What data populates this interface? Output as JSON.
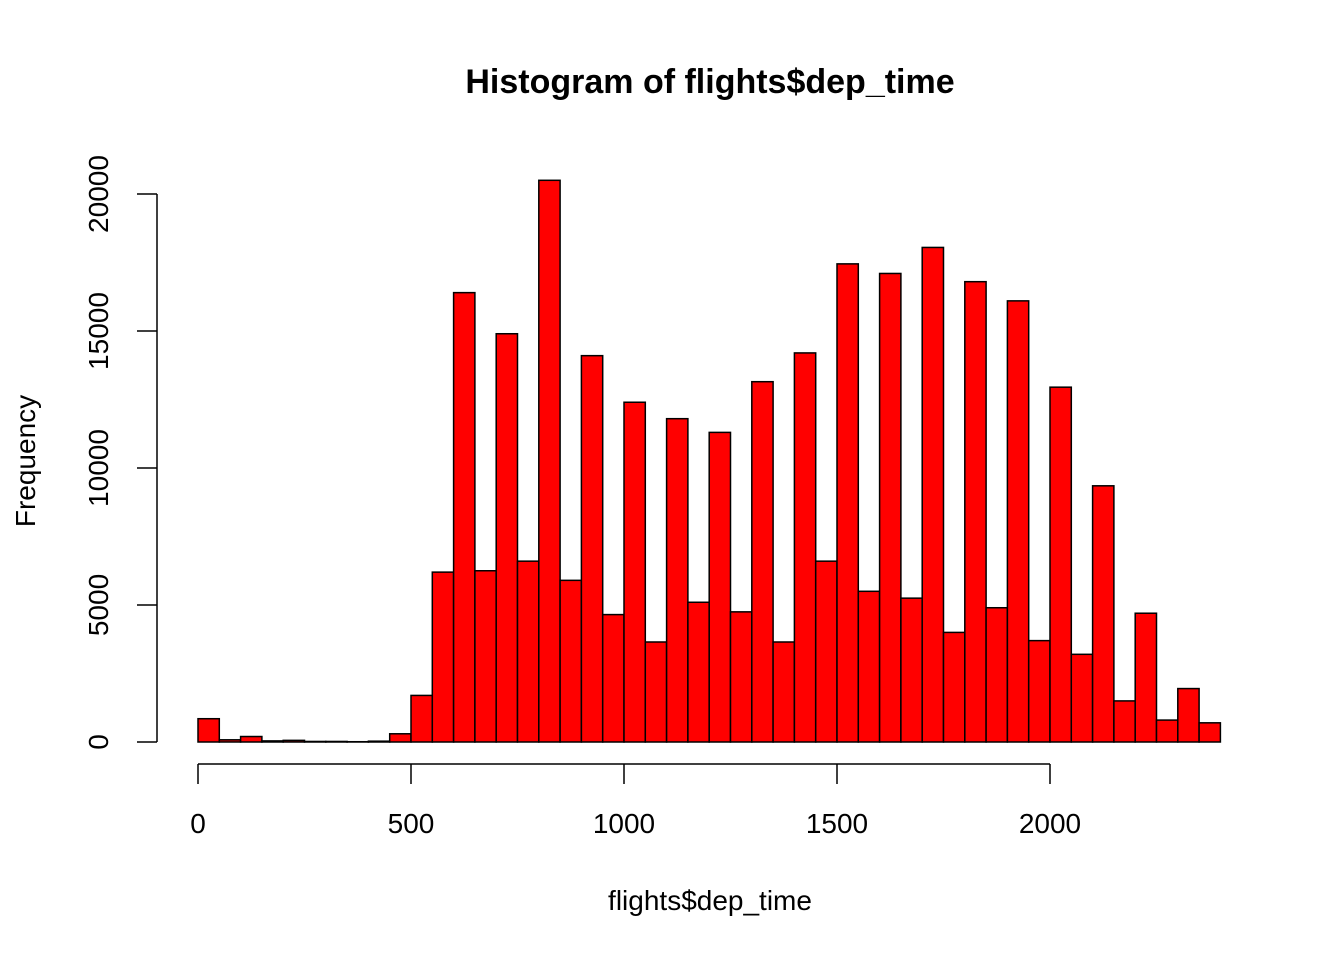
{
  "chart_data": {
    "type": "bar",
    "title": "Histogram of flights$dep_time",
    "xlabel": "flights$dep_time",
    "ylabel": "Frequency",
    "bar_color": "#ff0000",
    "border_color": "#000000",
    "bin_width": 50,
    "xlim": [
      0,
      2400
    ],
    "ylim": [
      0,
      20500
    ],
    "bins": [
      [
        0,
        50
      ],
      [
        50,
        100
      ],
      [
        100,
        150
      ],
      [
        150,
        200
      ],
      [
        200,
        250
      ],
      [
        250,
        300
      ],
      [
        300,
        350
      ],
      [
        350,
        400
      ],
      [
        400,
        450
      ],
      [
        450,
        500
      ],
      [
        500,
        550
      ],
      [
        550,
        600
      ],
      [
        600,
        650
      ],
      [
        650,
        700
      ],
      [
        700,
        750
      ],
      [
        750,
        800
      ],
      [
        800,
        850
      ],
      [
        850,
        900
      ],
      [
        900,
        950
      ],
      [
        950,
        1000
      ],
      [
        1000,
        1050
      ],
      [
        1050,
        1100
      ],
      [
        1100,
        1150
      ],
      [
        1150,
        1200
      ],
      [
        1200,
        1250
      ],
      [
        1250,
        1300
      ],
      [
        1300,
        1350
      ],
      [
        1350,
        1400
      ],
      [
        1400,
        1450
      ],
      [
        1450,
        1500
      ],
      [
        1500,
        1550
      ],
      [
        1550,
        1600
      ],
      [
        1600,
        1650
      ],
      [
        1650,
        1700
      ],
      [
        1700,
        1750
      ],
      [
        1750,
        1800
      ],
      [
        1800,
        1850
      ],
      [
        1850,
        1900
      ],
      [
        1900,
        1950
      ],
      [
        1950,
        2000
      ],
      [
        2000,
        2050
      ],
      [
        2050,
        2100
      ],
      [
        2100,
        2150
      ],
      [
        2150,
        2200
      ],
      [
        2200,
        2250
      ],
      [
        2250,
        2300
      ],
      [
        2300,
        2350
      ],
      [
        2350,
        2400
      ]
    ],
    "values": [
      850,
      80,
      200,
      40,
      60,
      20,
      20,
      10,
      30,
      300,
      1700,
      6200,
      16400,
      6250,
      14900,
      6600,
      20500,
      5900,
      14100,
      4650,
      12400,
      3650,
      11800,
      5100,
      11300,
      4750,
      13150,
      3650,
      14200,
      6600,
      17450,
      5500,
      17100,
      5250,
      18050,
      4000,
      16800,
      4900,
      16100,
      3700,
      12950,
      3200,
      9350,
      1500,
      4700,
      800,
      1950,
      700
    ],
    "x_ticks": [
      0,
      500,
      1000,
      1500,
      2000
    ],
    "x_tick_labels": [
      "0",
      "500",
      "1000",
      "1500",
      "2000"
    ],
    "y_ticks": [
      0,
      5000,
      10000,
      15000,
      20000
    ],
    "y_tick_labels": [
      "0",
      "5000",
      "10000",
      "15000",
      "20000"
    ]
  }
}
